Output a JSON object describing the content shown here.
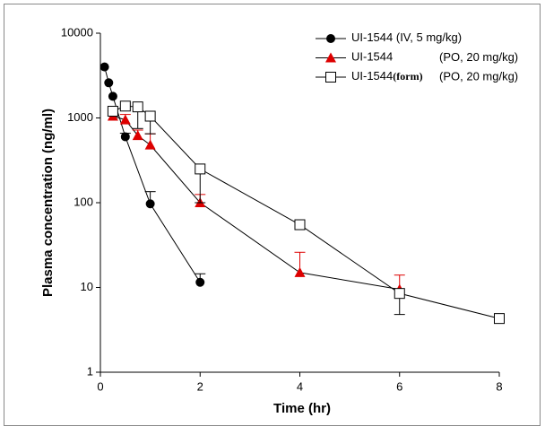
{
  "chart_data": {
    "type": "line",
    "xlabel": "Time (hr)",
    "ylabel": "Plasma concentration (ng/ml)",
    "xlim": [
      0,
      8
    ],
    "xticks": [
      0,
      2,
      4,
      6,
      8
    ],
    "ylim": [
      1,
      10000
    ],
    "yticks": [
      1,
      10,
      100,
      1000,
      10000
    ],
    "yscale": "log",
    "legend": "upper right",
    "series": [
      {
        "name": "UI-1544 (IV, 5 mg/kg)",
        "color": "#000000",
        "marker": "circle",
        "error_side": "up",
        "x": [
          0.083,
          0.167,
          0.25,
          0.5,
          1,
          2
        ],
        "values": [
          4000,
          2600,
          1800,
          600,
          97,
          11.5
        ],
        "errors": [
          null,
          null,
          null,
          60,
          38,
          3
        ]
      },
      {
        "name": "UI-1544",
        "dose": "(PO, 20 mg/kg)",
        "color": "#dd0000",
        "marker": "triangle",
        "error_side": "up",
        "x": [
          0.25,
          0.5,
          0.75,
          1,
          2,
          4,
          6
        ],
        "values": [
          1050,
          950,
          620,
          480,
          100,
          15,
          9.5
        ],
        "errors": [
          null,
          150,
          100,
          170,
          25,
          11,
          4.5
        ]
      },
      {
        "name": "UI-1544",
        "tag": "(form)",
        "dose": "(PO, 20 mg/kg)",
        "color": "#000000",
        "marker": "square",
        "error_side": "down",
        "x": [
          0.25,
          0.5,
          0.75,
          1,
          2,
          4,
          6,
          8
        ],
        "values": [
          1200,
          1380,
          1350,
          1050,
          250,
          55,
          8.5,
          4.3
        ],
        "errors": [
          null,
          null,
          600,
          400,
          150,
          null,
          3.7,
          null
        ]
      }
    ]
  }
}
